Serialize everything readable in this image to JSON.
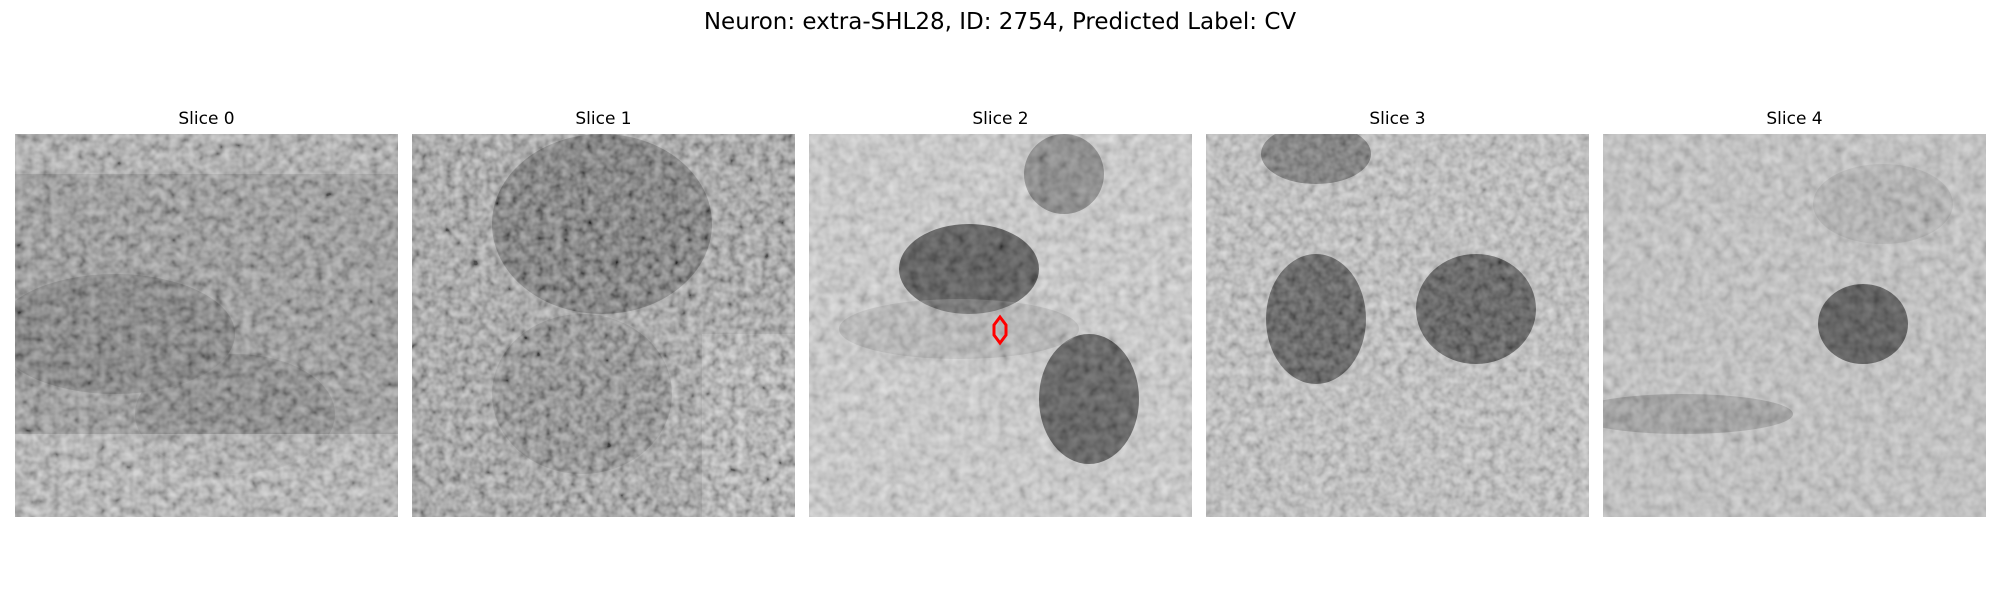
{
  "title": "Neuron: extra-SHL28, ID: 2754, Predicted Label: CV",
  "panels": [
    {
      "label": "Slice 0"
    },
    {
      "label": "Slice 1"
    },
    {
      "label": "Slice 2"
    },
    {
      "label": "Slice 3"
    },
    {
      "label": "Slice 4"
    }
  ],
  "marker_color": "#ff0000"
}
